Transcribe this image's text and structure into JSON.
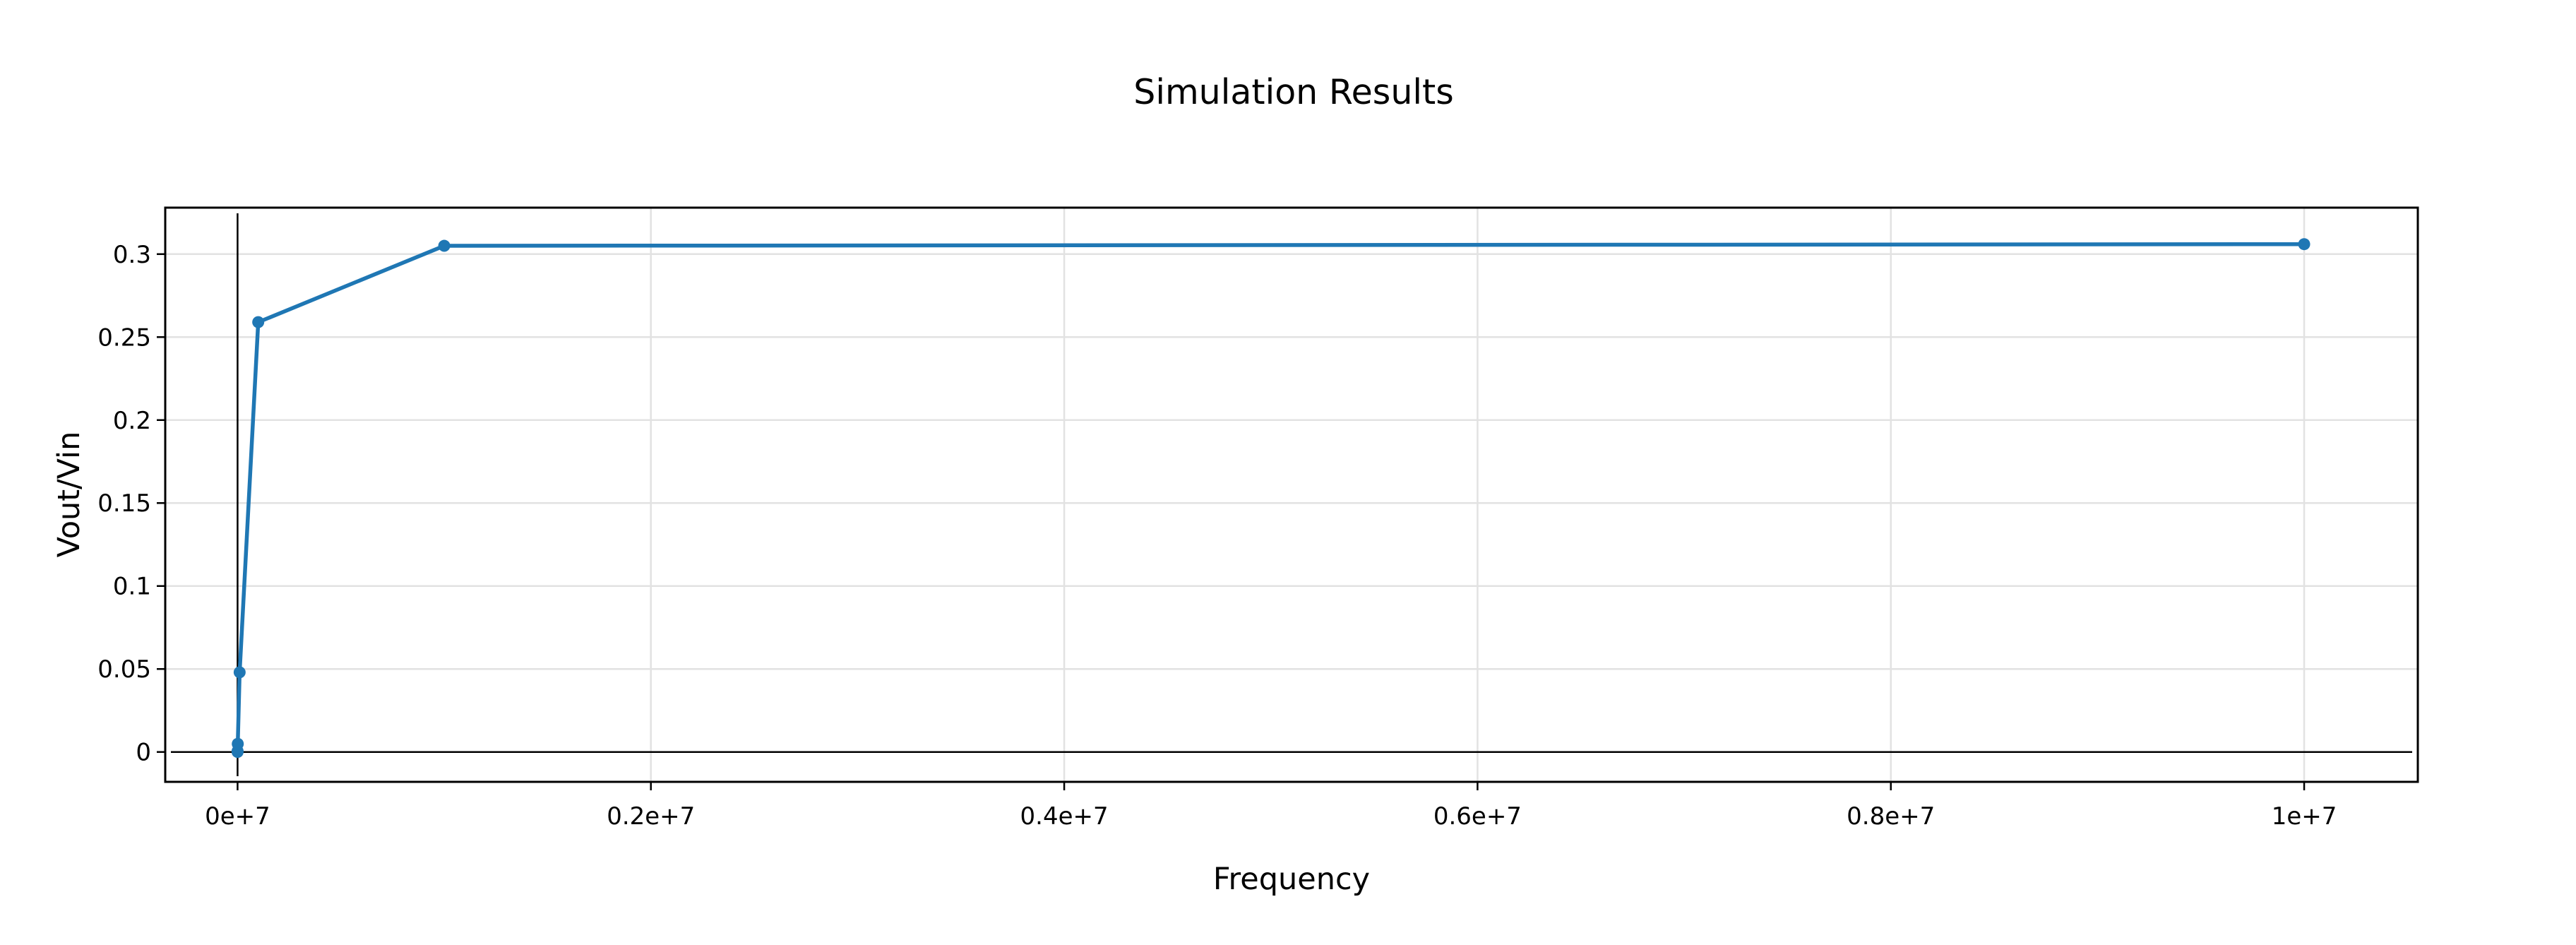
{
  "chart_data": {
    "type": "line",
    "title": "Simulation Results",
    "xlabel": "Frequency",
    "ylabel": "Vout/Vin",
    "xlim": [
      -350000,
      10550000
    ],
    "ylim": [
      -0.018,
      0.328
    ],
    "x_ticks": [
      {
        "value": 0,
        "label": "0e+7"
      },
      {
        "value": 2000000,
        "label": "0.2e+7"
      },
      {
        "value": 4000000,
        "label": "0.4e+7"
      },
      {
        "value": 6000000,
        "label": "0.6e+7"
      },
      {
        "value": 8000000,
        "label": "0.8e+7"
      },
      {
        "value": 10000000,
        "label": "1e+7"
      }
    ],
    "y_ticks": [
      {
        "value": 0,
        "label": "0"
      },
      {
        "value": 0.05,
        "label": "0.05"
      },
      {
        "value": 0.1,
        "label": "0.1"
      },
      {
        "value": 0.15,
        "label": "0.15"
      },
      {
        "value": 0.2,
        "label": "0.2"
      },
      {
        "value": 0.25,
        "label": "0.25"
      },
      {
        "value": 0.3,
        "label": "0.3"
      }
    ],
    "grid": true,
    "zero_lines": true,
    "series": [
      {
        "color": "#1f77b4",
        "x": [
          10,
          100,
          1000,
          10000,
          100000,
          1000000,
          10000000
        ],
        "y": [
          5e-05,
          0.0005,
          0.0049,
          0.048,
          0.259,
          0.305,
          0.306
        ]
      }
    ]
  }
}
